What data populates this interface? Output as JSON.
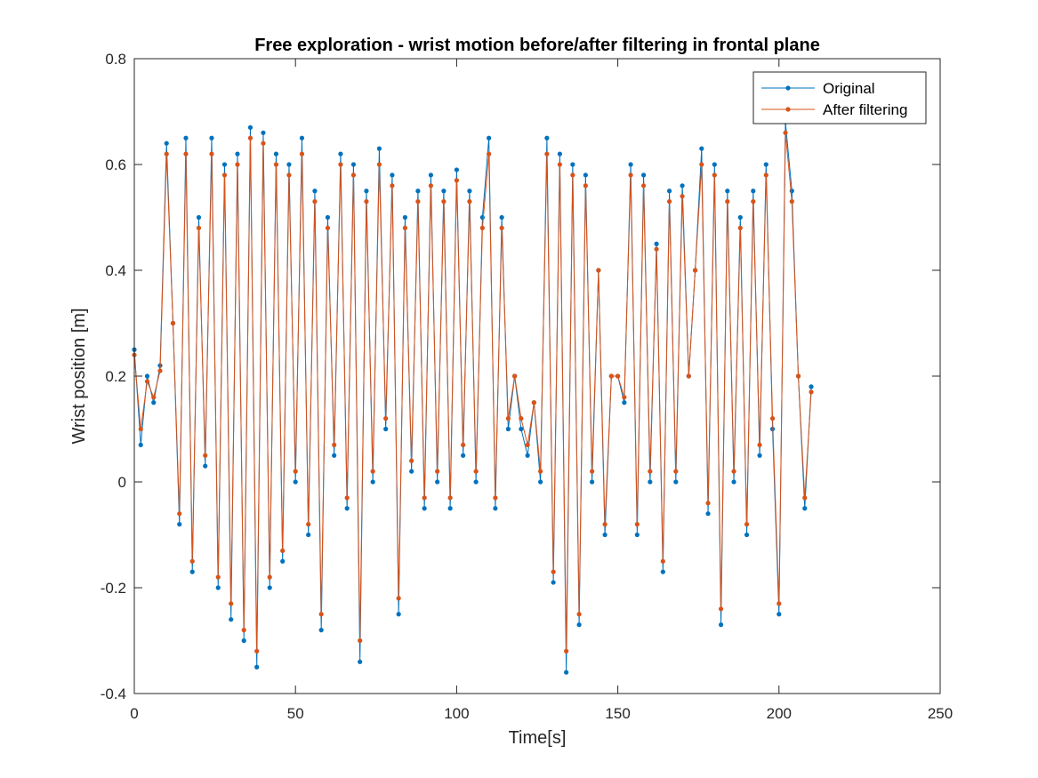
{
  "chart_data": {
    "type": "line",
    "title": "Free exploration - wrist motion before/after filtering in frontal plane",
    "xlabel": "Time[s]",
    "ylabel": "Wrist position [m]",
    "xlim": [
      0,
      250
    ],
    "ylim": [
      -0.4,
      0.8
    ],
    "xticks": [
      0,
      50,
      100,
      150,
      200,
      250
    ],
    "yticks": [
      -0.4,
      -0.2,
      0,
      0.2,
      0.4,
      0.6,
      0.8
    ],
    "xtick_labels": [
      "0",
      "50",
      "100",
      "150",
      "200",
      "250"
    ],
    "ytick_labels": [
      "-0.4",
      "-0.2",
      "0",
      "0.2",
      "0.4",
      "0.6",
      "0.8"
    ],
    "grid": false,
    "legend_position": "top-right",
    "legend": [
      "Original",
      "After filtering"
    ],
    "series": [
      {
        "name": "Original",
        "color": "#0072BD",
        "marker": "dot",
        "x": [
          0,
          2,
          4,
          6,
          8,
          10,
          12,
          14,
          16,
          18,
          20,
          22,
          24,
          26,
          28,
          30,
          32,
          34,
          36,
          38,
          40,
          42,
          44,
          46,
          48,
          50,
          52,
          54,
          56,
          58,
          60,
          62,
          64,
          66,
          68,
          70,
          72,
          74,
          76,
          78,
          80,
          82,
          84,
          86,
          88,
          90,
          92,
          94,
          96,
          98,
          100,
          102,
          104,
          106,
          108,
          110,
          112,
          114,
          116,
          118,
          120,
          122,
          124,
          126,
          128,
          130,
          132,
          134,
          136,
          138,
          140,
          142,
          144,
          146,
          148,
          150,
          152,
          154,
          156,
          158,
          160,
          162,
          164,
          166,
          168,
          170,
          172,
          174,
          176,
          178,
          180,
          182,
          184,
          186,
          188,
          190,
          192,
          194,
          196,
          198,
          200,
          202,
          204,
          206,
          208,
          210
        ],
        "y": [
          0.25,
          0.07,
          0.2,
          0.15,
          0.22,
          0.64,
          0.3,
          -0.08,
          0.65,
          -0.17,
          0.5,
          0.03,
          0.65,
          -0.2,
          0.6,
          -0.26,
          0.62,
          -0.3,
          0.67,
          -0.35,
          0.66,
          -0.2,
          0.62,
          -0.15,
          0.6,
          0.0,
          0.65,
          -0.1,
          0.55,
          -0.28,
          0.5,
          0.05,
          0.62,
          -0.05,
          0.6,
          -0.34,
          0.55,
          0.0,
          0.63,
          0.1,
          0.58,
          -0.25,
          0.5,
          0.02,
          0.55,
          -0.05,
          0.58,
          0.0,
          0.55,
          -0.05,
          0.59,
          0.05,
          0.55,
          0.0,
          0.5,
          0.65,
          -0.05,
          0.5,
          0.1,
          0.2,
          0.1,
          0.05,
          0.15,
          0.0,
          0.65,
          -0.19,
          0.62,
          -0.36,
          0.6,
          -0.27,
          0.58,
          0.0,
          0.4,
          -0.1,
          0.2,
          0.2,
          0.15,
          0.6,
          -0.1,
          0.58,
          0.0,
          0.45,
          -0.17,
          0.55,
          0.0,
          0.56,
          0.2,
          0.4,
          0.63,
          -0.06,
          0.6,
          -0.27,
          0.55,
          0.0,
          0.5,
          -0.1,
          0.55,
          0.05,
          0.6,
          0.1,
          -0.25,
          0.68,
          0.55,
          0.2,
          -0.05,
          0.18
        ]
      },
      {
        "name": "After filtering",
        "color": "#D95319",
        "marker": "dot",
        "x": [
          0,
          2,
          4,
          6,
          8,
          10,
          12,
          14,
          16,
          18,
          20,
          22,
          24,
          26,
          28,
          30,
          32,
          34,
          36,
          38,
          40,
          42,
          44,
          46,
          48,
          50,
          52,
          54,
          56,
          58,
          60,
          62,
          64,
          66,
          68,
          70,
          72,
          74,
          76,
          78,
          80,
          82,
          84,
          86,
          88,
          90,
          92,
          94,
          96,
          98,
          100,
          102,
          104,
          106,
          108,
          110,
          112,
          114,
          116,
          118,
          120,
          122,
          124,
          126,
          128,
          130,
          132,
          134,
          136,
          138,
          140,
          142,
          144,
          146,
          148,
          150,
          152,
          154,
          156,
          158,
          160,
          162,
          164,
          166,
          168,
          170,
          172,
          174,
          176,
          178,
          180,
          182,
          184,
          186,
          188,
          190,
          192,
          194,
          196,
          198,
          200,
          202,
          204,
          206,
          208,
          210
        ],
        "y": [
          0.24,
          0.1,
          0.19,
          0.16,
          0.21,
          0.62,
          0.3,
          -0.06,
          0.62,
          -0.15,
          0.48,
          0.05,
          0.62,
          -0.18,
          0.58,
          -0.23,
          0.6,
          -0.28,
          0.65,
          -0.32,
          0.64,
          -0.18,
          0.6,
          -0.13,
          0.58,
          0.02,
          0.62,
          -0.08,
          0.53,
          -0.25,
          0.48,
          0.07,
          0.6,
          -0.03,
          0.58,
          -0.3,
          0.53,
          0.02,
          0.6,
          0.12,
          0.56,
          -0.22,
          0.48,
          0.04,
          0.53,
          -0.03,
          0.56,
          0.02,
          0.53,
          -0.03,
          0.57,
          0.07,
          0.53,
          0.02,
          0.48,
          0.62,
          -0.03,
          0.48,
          0.12,
          0.2,
          0.12,
          0.07,
          0.15,
          0.02,
          0.62,
          -0.17,
          0.6,
          -0.32,
          0.58,
          -0.25,
          0.56,
          0.02,
          0.4,
          -0.08,
          0.2,
          0.2,
          0.16,
          0.58,
          -0.08,
          0.56,
          0.02,
          0.44,
          -0.15,
          0.53,
          0.02,
          0.54,
          0.2,
          0.4,
          0.6,
          -0.04,
          0.58,
          -0.24,
          0.53,
          0.02,
          0.48,
          -0.08,
          0.53,
          0.07,
          0.58,
          0.12,
          -0.23,
          0.66,
          0.53,
          0.2,
          -0.03,
          0.17
        ]
      }
    ]
  }
}
